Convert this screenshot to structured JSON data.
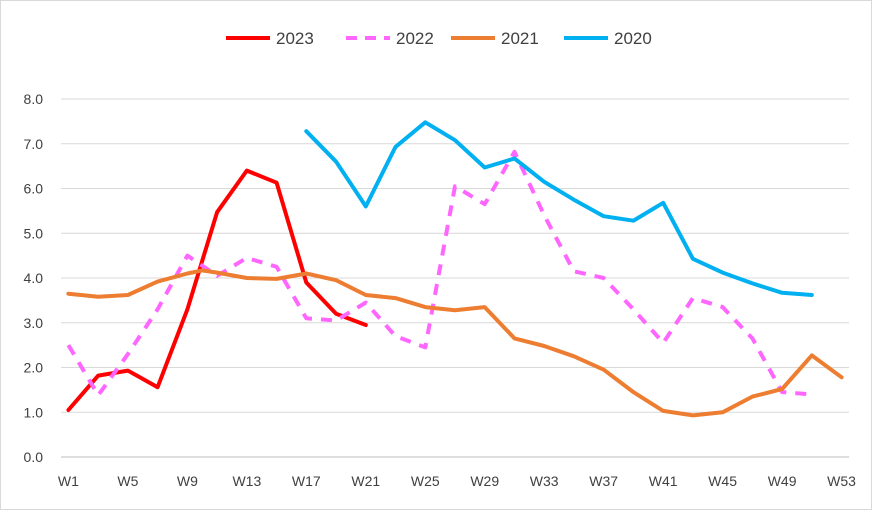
{
  "chart_data": {
    "type": "line",
    "x": [
      "W1",
      "W2",
      "W3",
      "W4",
      "W5",
      "W6",
      "W7",
      "W8",
      "W9",
      "W10",
      "W11",
      "W12",
      "W13",
      "W14",
      "W15",
      "W16",
      "W17",
      "W18",
      "W19",
      "W20",
      "W21",
      "W22",
      "W23",
      "W24",
      "W25",
      "W26",
      "W27",
      "W28",
      "W29",
      "W30",
      "W31",
      "W32",
      "W33",
      "W34",
      "W35",
      "W36",
      "W37",
      "W38",
      "W39",
      "W40",
      "W41",
      "W42",
      "W43",
      "W44",
      "W45",
      "W46",
      "W47",
      "W48",
      "W49",
      "W50",
      "W51",
      "W52",
      "W53"
    ],
    "x_tick_labels": [
      "W1",
      "W5",
      "W9",
      "W13",
      "W17",
      "W21",
      "W25",
      "W29",
      "W33",
      "W37",
      "W41",
      "W45",
      "W49",
      "W53"
    ],
    "ylim": [
      0,
      8
    ],
    "y_ticks": [
      "0.0",
      "1.0",
      "2.0",
      "3.0",
      "4.0",
      "5.0",
      "6.0",
      "7.0",
      "8.0"
    ],
    "grid": "horizontal",
    "legend_position": "top-center",
    "series": [
      {
        "name": "2023",
        "color": "#ff0000",
        "dash": "solid",
        "points": [
          [
            "W1",
            1.05
          ],
          [
            "W3",
            1.82
          ],
          [
            "W5",
            1.93
          ],
          [
            "W7",
            1.56
          ],
          [
            "W9",
            3.3
          ],
          [
            "W11",
            5.47
          ],
          [
            "W13",
            6.4
          ],
          [
            "W15",
            6.13
          ],
          [
            "W17",
            3.9
          ],
          [
            "W19",
            3.2
          ],
          [
            "W21",
            2.95
          ]
        ]
      },
      {
        "name": "2022",
        "color": "#ff66ff",
        "dash": "dashed",
        "points": [
          [
            "W1",
            2.5
          ],
          [
            "W3",
            1.38
          ],
          [
            "W5",
            2.3
          ],
          [
            "W7",
            3.3
          ],
          [
            "W9",
            4.5
          ],
          [
            "W11",
            4.05
          ],
          [
            "W13",
            4.45
          ],
          [
            "W15",
            4.25
          ],
          [
            "W17",
            3.1
          ],
          [
            "W19",
            3.05
          ],
          [
            "W21",
            3.45
          ],
          [
            "W23",
            2.7
          ],
          [
            "W25",
            2.45
          ],
          [
            "W27",
            6.05
          ],
          [
            "W29",
            5.65
          ],
          [
            "W31",
            6.82
          ],
          [
            "W33",
            5.4
          ],
          [
            "W35",
            4.15
          ],
          [
            "W37",
            4.0
          ],
          [
            "W39",
            3.3
          ],
          [
            "W41",
            2.55
          ],
          [
            "W43",
            3.55
          ],
          [
            "W45",
            3.35
          ],
          [
            "W47",
            2.65
          ],
          [
            "W49",
            1.45
          ],
          [
            "W51",
            1.4
          ]
        ]
      },
      {
        "name": "2021",
        "color": "#ed7d31",
        "dash": "solid",
        "points": [
          [
            "W1",
            3.65
          ],
          [
            "W3",
            3.58
          ],
          [
            "W5",
            3.62
          ],
          [
            "W7",
            3.92
          ],
          [
            "W9",
            4.1
          ],
          [
            "W10",
            4.17
          ],
          [
            "W11",
            4.12
          ],
          [
            "W13",
            4.0
          ],
          [
            "W15",
            3.98
          ],
          [
            "W17",
            4.1
          ],
          [
            "W19",
            3.95
          ],
          [
            "W21",
            3.62
          ],
          [
            "W23",
            3.55
          ],
          [
            "W25",
            3.35
          ],
          [
            "W27",
            3.28
          ],
          [
            "W29",
            3.35
          ],
          [
            "W31",
            2.65
          ],
          [
            "W33",
            2.48
          ],
          [
            "W35",
            2.25
          ],
          [
            "W37",
            1.95
          ],
          [
            "W39",
            1.45
          ],
          [
            "W41",
            1.03
          ],
          [
            "W43",
            0.93
          ],
          [
            "W45",
            1.0
          ],
          [
            "W47",
            1.35
          ],
          [
            "W49",
            1.52
          ],
          [
            "W51",
            2.27
          ],
          [
            "W53",
            1.78
          ]
        ]
      },
      {
        "name": "2020",
        "color": "#00b0f0",
        "dash": "solid",
        "points": [
          [
            "W17",
            7.28
          ],
          [
            "W19",
            6.6
          ],
          [
            "W21",
            5.6
          ],
          [
            "W23",
            6.93
          ],
          [
            "W25",
            7.48
          ],
          [
            "W27",
            7.08
          ],
          [
            "W29",
            6.47
          ],
          [
            "W31",
            6.67
          ],
          [
            "W33",
            6.15
          ],
          [
            "W35",
            5.75
          ],
          [
            "W37",
            5.38
          ],
          [
            "W39",
            5.28
          ],
          [
            "W41",
            5.68
          ],
          [
            "W43",
            4.43
          ],
          [
            "W45",
            4.12
          ],
          [
            "W47",
            3.88
          ],
          [
            "W49",
            3.67
          ],
          [
            "W51",
            3.62
          ]
        ]
      }
    ]
  }
}
